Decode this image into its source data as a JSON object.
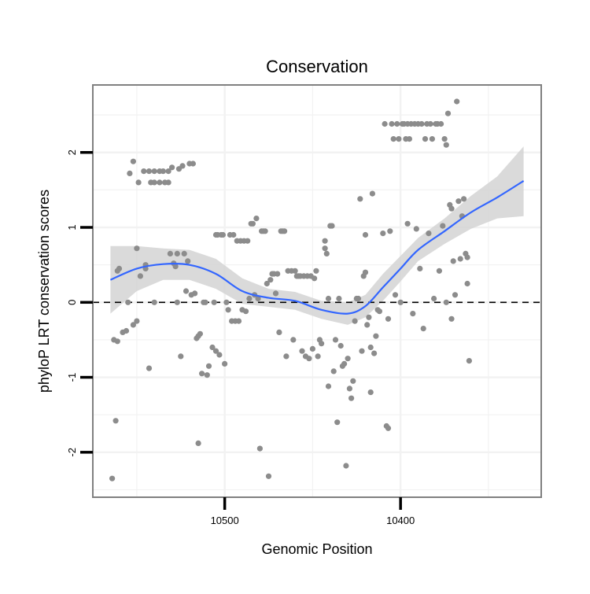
{
  "chart_data": {
    "type": "scatter",
    "title": "Conservation",
    "xlabel": "Genomic Position",
    "ylabel": "phyloP LRT conservation scores",
    "x_ticks": [
      {
        "value": 10500,
        "label": "10500"
      },
      {
        "value": 10400,
        "label": "10400"
      }
    ],
    "y_ticks": [
      {
        "value": -2,
        "label": "-2"
      },
      {
        "value": -1,
        "label": "-1"
      },
      {
        "value": 0,
        "label": "0"
      },
      {
        "value": 1,
        "label": "1"
      },
      {
        "value": 2,
        "label": "2"
      }
    ],
    "x_reversed": true,
    "xlim": [
      10575,
      10320
    ],
    "ylim": [
      -2.6,
      2.9
    ],
    "grid": true,
    "reference_line": {
      "y": 0,
      "style": "dashed"
    },
    "colors": {
      "points": "#8c8c8c",
      "smooth_line": "#3366ff",
      "confidence_band": "#d3d3d3",
      "panel_border": "#808080",
      "grid": "#f2f2f2"
    },
    "smooth": {
      "x": [
        10565,
        10550,
        10535,
        10520,
        10505,
        10490,
        10475,
        10460,
        10445,
        10430,
        10420,
        10410,
        10400,
        10390,
        10375,
        10360,
        10345,
        10330
      ],
      "y": [
        0.3,
        0.45,
        0.51,
        0.5,
        0.38,
        0.15,
        0.06,
        0.02,
        -0.1,
        -0.15,
        -0.05,
        0.2,
        0.45,
        0.7,
        0.95,
        1.2,
        1.4,
        1.62
      ],
      "lower": [
        -0.15,
        0.15,
        0.3,
        0.3,
        0.18,
        -0.02,
        -0.06,
        -0.1,
        -0.22,
        -0.3,
        -0.2,
        0.02,
        0.28,
        0.55,
        0.78,
        0.98,
        1.12,
        1.15
      ],
      "upper": [
        0.75,
        0.75,
        0.72,
        0.7,
        0.58,
        0.32,
        0.18,
        0.14,
        0.02,
        0.0,
        0.1,
        0.38,
        0.62,
        0.86,
        1.12,
        1.42,
        1.68,
        2.08
      ]
    },
    "points": [
      {
        "x": 10564,
        "y": -2.35
      },
      {
        "x": 10562,
        "y": -1.58
      },
      {
        "x": 10563,
        "y": -0.5
      },
      {
        "x": 10561,
        "y": -0.52
      },
      {
        "x": 10561,
        "y": 0.42
      },
      {
        "x": 10560,
        "y": 0.45
      },
      {
        "x": 10558,
        "y": -0.4
      },
      {
        "x": 10556,
        "y": -0.38
      },
      {
        "x": 10555,
        "y": 0.0
      },
      {
        "x": 10554,
        "y": 1.72
      },
      {
        "x": 10552,
        "y": 1.88
      },
      {
        "x": 10552,
        "y": -0.3
      },
      {
        "x": 10550,
        "y": -0.25
      },
      {
        "x": 10550,
        "y": 0.72
      },
      {
        "x": 10549,
        "y": 1.6
      },
      {
        "x": 10548,
        "y": 0.35
      },
      {
        "x": 10546,
        "y": 1.75
      },
      {
        "x": 10545,
        "y": 0.5
      },
      {
        "x": 10545,
        "y": 0.45
      },
      {
        "x": 10543,
        "y": 1.75
      },
      {
        "x": 10543,
        "y": -0.88
      },
      {
        "x": 10542,
        "y": 1.6
      },
      {
        "x": 10540,
        "y": 1.75
      },
      {
        "x": 10540,
        "y": 1.6
      },
      {
        "x": 10540,
        "y": 0.0
      },
      {
        "x": 10537,
        "y": 1.75
      },
      {
        "x": 10537,
        "y": 1.6
      },
      {
        "x": 10535,
        "y": 1.75
      },
      {
        "x": 10534,
        "y": 1.6
      },
      {
        "x": 10532,
        "y": 1.75
      },
      {
        "x": 10532,
        "y": 1.6
      },
      {
        "x": 10531,
        "y": 0.65
      },
      {
        "x": 10530,
        "y": 1.8
      },
      {
        "x": 10529,
        "y": 0.52
      },
      {
        "x": 10528,
        "y": 0.48
      },
      {
        "x": 10527,
        "y": 0.0
      },
      {
        "x": 10527,
        "y": 0.65
      },
      {
        "x": 10526,
        "y": 1.78
      },
      {
        "x": 10525,
        "y": -0.72
      },
      {
        "x": 10524,
        "y": 1.82
      },
      {
        "x": 10523,
        "y": 0.65
      },
      {
        "x": 10522,
        "y": 0.15
      },
      {
        "x": 10521,
        "y": 0.55
      },
      {
        "x": 10520,
        "y": 1.85
      },
      {
        "x": 10519,
        "y": 0.1
      },
      {
        "x": 10518,
        "y": 1.85
      },
      {
        "x": 10517,
        "y": 0.12
      },
      {
        "x": 10516,
        "y": -0.48
      },
      {
        "x": 10515,
        "y": -0.45
      },
      {
        "x": 10515,
        "y": -1.88
      },
      {
        "x": 10514,
        "y": -0.42
      },
      {
        "x": 10513,
        "y": -0.95
      },
      {
        "x": 10512,
        "y": 0.0
      },
      {
        "x": 10511,
        "y": 0.0
      },
      {
        "x": 10510,
        "y": -0.97
      },
      {
        "x": 10509,
        "y": -0.85
      },
      {
        "x": 10507,
        "y": -0.6
      },
      {
        "x": 10506,
        "y": 0.0
      },
      {
        "x": 10505,
        "y": -0.65
      },
      {
        "x": 10505,
        "y": 0.9
      },
      {
        "x": 10504,
        "y": 0.9
      },
      {
        "x": 10503,
        "y": -0.7
      },
      {
        "x": 10502,
        "y": 0.9
      },
      {
        "x": 10501,
        "y": 0.9
      },
      {
        "x": 10500,
        "y": -0.82
      },
      {
        "x": 10499,
        "y": 0.0
      },
      {
        "x": 10498,
        "y": -0.1
      },
      {
        "x": 10497,
        "y": 0.9
      },
      {
        "x": 10496,
        "y": -0.25
      },
      {
        "x": 10495,
        "y": 0.9
      },
      {
        "x": 10494,
        "y": -0.25
      },
      {
        "x": 10493,
        "y": 0.82
      },
      {
        "x": 10492,
        "y": -0.25
      },
      {
        "x": 10491,
        "y": 0.82
      },
      {
        "x": 10490,
        "y": -0.1
      },
      {
        "x": 10489,
        "y": 0.82
      },
      {
        "x": 10488,
        "y": -0.12
      },
      {
        "x": 10487,
        "y": 0.82
      },
      {
        "x": 10486,
        "y": 0.05
      },
      {
        "x": 10485,
        "y": 1.05
      },
      {
        "x": 10484,
        "y": 1.05
      },
      {
        "x": 10483,
        "y": 0.1
      },
      {
        "x": 10482,
        "y": 1.12
      },
      {
        "x": 10481,
        "y": 0.05
      },
      {
        "x": 10480,
        "y": -1.95
      },
      {
        "x": 10479,
        "y": 0.95
      },
      {
        "x": 10478,
        "y": 0.95
      },
      {
        "x": 10477,
        "y": 0.95
      },
      {
        "x": 10476,
        "y": 0.25
      },
      {
        "x": 10475,
        "y": -2.32
      },
      {
        "x": 10474,
        "y": 0.3
      },
      {
        "x": 10473,
        "y": 0.38
      },
      {
        "x": 10472,
        "y": 0.38
      },
      {
        "x": 10471,
        "y": 0.12
      },
      {
        "x": 10470,
        "y": 0.38
      },
      {
        "x": 10469,
        "y": -0.4
      },
      {
        "x": 10468,
        "y": 0.95
      },
      {
        "x": 10467,
        "y": 0.95
      },
      {
        "x": 10466,
        "y": 0.95
      },
      {
        "x": 10465,
        "y": -0.72
      },
      {
        "x": 10464,
        "y": 0.42
      },
      {
        "x": 10462,
        "y": 0.42
      },
      {
        "x": 10461,
        "y": -0.5
      },
      {
        "x": 10460,
        "y": 0.42
      },
      {
        "x": 10459,
        "y": 0.35
      },
      {
        "x": 10458,
        "y": 0.35
      },
      {
        "x": 10457,
        "y": 0.35
      },
      {
        "x": 10456,
        "y": -0.65
      },
      {
        "x": 10455,
        "y": 0.35
      },
      {
        "x": 10454,
        "y": -0.72
      },
      {
        "x": 10453,
        "y": 0.35
      },
      {
        "x": 10452,
        "y": -0.75
      },
      {
        "x": 10451,
        "y": 0.35
      },
      {
        "x": 10450,
        "y": -0.62
      },
      {
        "x": 10449,
        "y": 0.32
      },
      {
        "x": 10448,
        "y": 0.42
      },
      {
        "x": 10447,
        "y": -0.72
      },
      {
        "x": 10446,
        "y": -0.5
      },
      {
        "x": 10445,
        "y": -0.55
      },
      {
        "x": 10443,
        "y": 0.72
      },
      {
        "x": 10443,
        "y": 0.82
      },
      {
        "x": 10442,
        "y": 0.65
      },
      {
        "x": 10441,
        "y": -1.12
      },
      {
        "x": 10441,
        "y": 0.05
      },
      {
        "x": 10440,
        "y": 1.02
      },
      {
        "x": 10439,
        "y": 1.02
      },
      {
        "x": 10438,
        "y": -0.92
      },
      {
        "x": 10437,
        "y": -0.5
      },
      {
        "x": 10436,
        "y": -1.6
      },
      {
        "x": 10435,
        "y": 0.05
      },
      {
        "x": 10434,
        "y": -0.58
      },
      {
        "x": 10433,
        "y": -0.85
      },
      {
        "x": 10432,
        "y": -0.82
      },
      {
        "x": 10431,
        "y": -2.18
      },
      {
        "x": 10430,
        "y": -0.75
      },
      {
        "x": 10429,
        "y": -1.15
      },
      {
        "x": 10428,
        "y": -1.28
      },
      {
        "x": 10427,
        "y": -1.05
      },
      {
        "x": 10426,
        "y": -0.25
      },
      {
        "x": 10425,
        "y": 0.05
      },
      {
        "x": 10424,
        "y": 0.05
      },
      {
        "x": 10423,
        "y": 1.38
      },
      {
        "x": 10422,
        "y": -0.65
      },
      {
        "x": 10421,
        "y": 0.35
      },
      {
        "x": 10420,
        "y": 0.4
      },
      {
        "x": 10420,
        "y": 0.9
      },
      {
        "x": 10419,
        "y": -0.3
      },
      {
        "x": 10418,
        "y": -0.2
      },
      {
        "x": 10417,
        "y": -1.2
      },
      {
        "x": 10417,
        "y": -0.6
      },
      {
        "x": 10416,
        "y": 1.45
      },
      {
        "x": 10415,
        "y": -0.68
      },
      {
        "x": 10414,
        "y": -0.45
      },
      {
        "x": 10413,
        "y": -0.1
      },
      {
        "x": 10412,
        "y": -0.12
      },
      {
        "x": 10410,
        "y": 0.92
      },
      {
        "x": 10409,
        "y": 2.38
      },
      {
        "x": 10408,
        "y": -1.65
      },
      {
        "x": 10407,
        "y": -1.68
      },
      {
        "x": 10407,
        "y": -0.22
      },
      {
        "x": 10406,
        "y": 0.95
      },
      {
        "x": 10405,
        "y": 2.38
      },
      {
        "x": 10404,
        "y": 2.18
      },
      {
        "x": 10403,
        "y": 0.1
      },
      {
        "x": 10402,
        "y": 2.38
      },
      {
        "x": 10401,
        "y": 2.18
      },
      {
        "x": 10400,
        "y": 0.0
      },
      {
        "x": 10399,
        "y": 2.38
      },
      {
        "x": 10398,
        "y": 2.38
      },
      {
        "x": 10397,
        "y": 2.18
      },
      {
        "x": 10396,
        "y": 1.05
      },
      {
        "x": 10396,
        "y": 2.38
      },
      {
        "x": 10395,
        "y": 2.18
      },
      {
        "x": 10394,
        "y": 2.38
      },
      {
        "x": 10393,
        "y": -0.15
      },
      {
        "x": 10392,
        "y": 2.38
      },
      {
        "x": 10391,
        "y": 0.98
      },
      {
        "x": 10390,
        "y": 2.38
      },
      {
        "x": 10389,
        "y": 0.45
      },
      {
        "x": 10388,
        "y": 2.38
      },
      {
        "x": 10387,
        "y": -0.35
      },
      {
        "x": 10386,
        "y": 2.18
      },
      {
        "x": 10385,
        "y": 2.38
      },
      {
        "x": 10384,
        "y": 0.92
      },
      {
        "x": 10383,
        "y": 2.38
      },
      {
        "x": 10382,
        "y": 2.18
      },
      {
        "x": 10381,
        "y": 0.05
      },
      {
        "x": 10380,
        "y": 2.38
      },
      {
        "x": 10379,
        "y": 2.38
      },
      {
        "x": 10378,
        "y": 0.42
      },
      {
        "x": 10377,
        "y": 2.38
      },
      {
        "x": 10376,
        "y": 1.02
      },
      {
        "x": 10375,
        "y": 2.18
      },
      {
        "x": 10374,
        "y": 2.1
      },
      {
        "x": 10374,
        "y": 0.0
      },
      {
        "x": 10373,
        "y": 2.52
      },
      {
        "x": 10372,
        "y": 1.3
      },
      {
        "x": 10371,
        "y": 1.25
      },
      {
        "x": 10371,
        "y": -0.22
      },
      {
        "x": 10370,
        "y": 0.55
      },
      {
        "x": 10369,
        "y": 0.1
      },
      {
        "x": 10368,
        "y": 2.68
      },
      {
        "x": 10367,
        "y": 1.35
      },
      {
        "x": 10366,
        "y": 0.58
      },
      {
        "x": 10365,
        "y": 1.15
      },
      {
        "x": 10364,
        "y": 1.38
      },
      {
        "x": 10363,
        "y": 0.65
      },
      {
        "x": 10362,
        "y": 0.6
      },
      {
        "x": 10362,
        "y": 0.25
      },
      {
        "x": 10361,
        "y": -0.78
      }
    ]
  }
}
